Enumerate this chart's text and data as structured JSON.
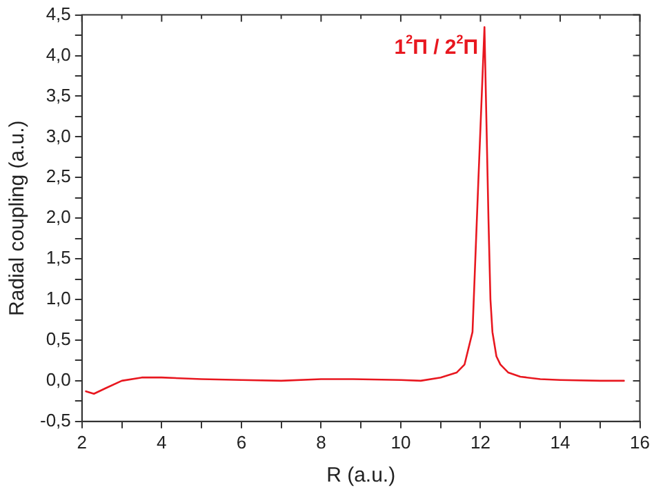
{
  "chart_data": {
    "type": "line",
    "xlabel": "R (a.u.)",
    "ylabel": "Radial coupling (a.u.)",
    "annotations": [
      "1$^{2}$Π / 2$^{2}$Π"
    ],
    "xlim": [
      2,
      16
    ],
    "ylim": [
      -0.5,
      4.5
    ],
    "xticks": [
      2,
      {
        "value": 3,
        "label": null
      },
      4,
      {
        "value": 5,
        "label": null
      },
      6,
      {
        "value": 7,
        "label": null
      },
      8,
      {
        "value": 9,
        "label": null
      },
      10,
      {
        "value": 11,
        "label": null
      },
      12,
      {
        "value": 13,
        "label": null
      },
      14,
      {
        "value": 15,
        "label": null
      },
      16
    ],
    "yticks": [
      {
        "value": -0.5,
        "label": "-0,5"
      },
      {
        "value": -0.25,
        "label": null
      },
      {
        "value": 0,
        "label": "0,0"
      },
      {
        "value": 0.25,
        "label": null
      },
      {
        "value": 0.5,
        "label": "0,5"
      },
      {
        "value": 0.75,
        "label": null
      },
      {
        "value": 1,
        "label": "1,0"
      },
      {
        "value": 1.25,
        "label": null
      },
      {
        "value": 1.5,
        "label": "1,5"
      },
      {
        "value": 1.75,
        "label": null
      },
      {
        "value": 2,
        "label": "2,0"
      },
      {
        "value": 2.25,
        "label": null
      },
      {
        "value": 2.5,
        "label": "2,5"
      },
      {
        "value": 2.75,
        "label": null
      },
      {
        "value": 3,
        "label": "3,0"
      },
      {
        "value": 3.25,
        "label": null
      },
      {
        "value": 3.5,
        "label": "3,5"
      },
      {
        "value": 3.75,
        "label": null
      },
      {
        "value": 4,
        "label": "4,0"
      },
      {
        "value": 4.25,
        "label": null
      },
      {
        "value": 4.5,
        "label": "4,5"
      }
    ],
    "grid": false,
    "legend": false,
    "marker": "none",
    "line_style": "solid",
    "series": [
      {
        "color": "#e8171f",
        "x": [
          2.1,
          2.3,
          2.6,
          3.0,
          3.5,
          4.0,
          5.0,
          6.0,
          7.0,
          8.0,
          8.8,
          10.0,
          10.5,
          11.0,
          11.4,
          11.6,
          11.8,
          11.95,
          12.1,
          12.2,
          12.25,
          12.3,
          12.4,
          12.5,
          12.7,
          13.0,
          13.5,
          14.0,
          15.0,
          15.6
        ],
        "values": [
          -0.13,
          -0.16,
          -0.09,
          0.0,
          0.04,
          0.04,
          0.02,
          0.01,
          0.0,
          0.02,
          0.02,
          0.01,
          0.0,
          0.04,
          0.1,
          0.2,
          0.6,
          2.5,
          4.35,
          2.0,
          1.0,
          0.6,
          0.3,
          0.2,
          0.1,
          0.05,
          0.02,
          0.01,
          0.0,
          0.0
        ]
      }
    ]
  }
}
